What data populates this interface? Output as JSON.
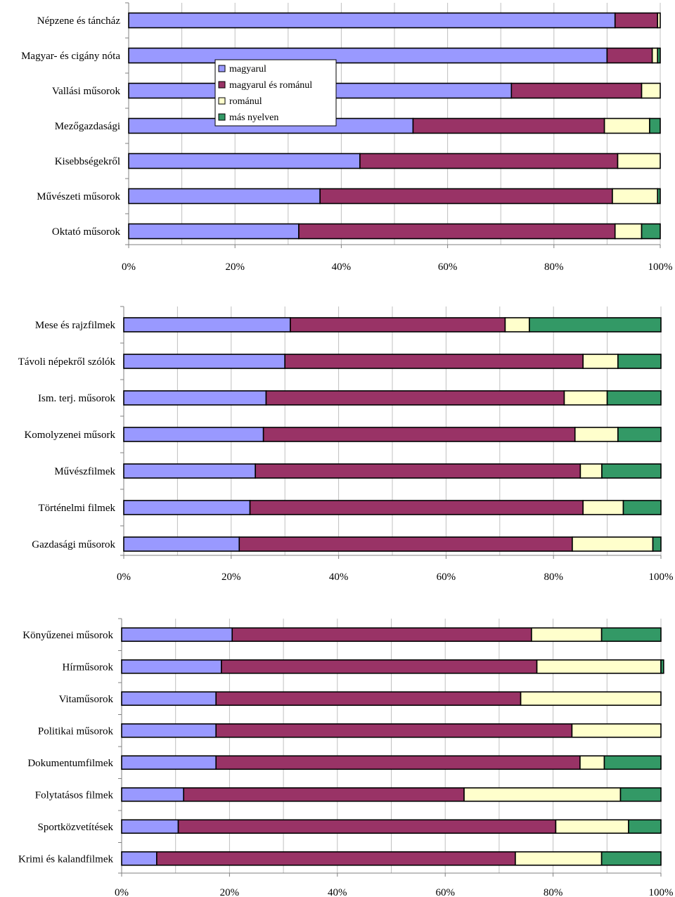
{
  "series_names": [
    "magyarul",
    "magyarul és románul",
    "románul",
    "más nyelven"
  ],
  "colors": [
    "#9999ff",
    "#993366",
    "#ffffcc",
    "#339966"
  ],
  "chart_data": [
    {
      "type": "bar",
      "orientation": "horizontal",
      "stacked": "percent",
      "categories": [
        "Népzene és táncház",
        "Magyar- és cigány nóta",
        "Vallási műsorok",
        "Mezőgazdasági",
        "Kisebbségekről",
        "Művészeti műsorok",
        "Oktató műsorok"
      ],
      "series": [
        {
          "name": "magyarul",
          "values": [
            91.5,
            90.0,
            72.0,
            53.5,
            43.5,
            36.0,
            32.0
          ]
        },
        {
          "name": "magyarul és románul",
          "values": [
            8.0,
            8.5,
            24.5,
            36.0,
            48.5,
            55.0,
            59.5
          ]
        },
        {
          "name": "románul",
          "values": [
            0.5,
            1.0,
            3.5,
            8.5,
            8.0,
            8.5,
            5.0
          ]
        },
        {
          "name": "más nyelven",
          "values": [
            0.0,
            0.5,
            0.0,
            2.0,
            0.0,
            0.5,
            3.5
          ]
        }
      ],
      "xticks": [
        "0%",
        "20%",
        "40%",
        "60%",
        "80%",
        "100%"
      ],
      "xlim": [
        0,
        100
      ],
      "legend": "top-center"
    },
    {
      "type": "bar",
      "orientation": "horizontal",
      "stacked": "percent",
      "categories": [
        "Mese és rajzfilmek",
        "Távoli népekről szólók",
        "Ism. terj. műsorok",
        "Komolyzenei műsork",
        "Művészfilmek",
        "Történelmi filmek",
        "Gazdasági műsorok"
      ],
      "series": [
        {
          "name": "magyarul",
          "values": [
            31.0,
            30.0,
            26.5,
            26.0,
            24.5,
            23.5,
            21.5
          ]
        },
        {
          "name": "magyarul és románul",
          "values": [
            40.0,
            55.5,
            55.5,
            58.0,
            60.5,
            62.0,
            62.0
          ]
        },
        {
          "name": "románul",
          "values": [
            4.5,
            6.5,
            8.0,
            8.0,
            4.0,
            7.5,
            15.0
          ]
        },
        {
          "name": "más nyelven",
          "values": [
            24.5,
            8.0,
            10.0,
            8.0,
            11.0,
            7.0,
            1.5
          ]
        }
      ],
      "xticks": [
        "0%",
        "20%",
        "40%",
        "60%",
        "80%",
        "100%"
      ],
      "xlim": [
        0,
        100
      ]
    },
    {
      "type": "bar",
      "orientation": "horizontal",
      "stacked": "percent",
      "categories": [
        "Könyűzenei műsorok",
        "Hírműsorok",
        "Vitaműsorok",
        "Politikai műsorok",
        "Dokumentumfilmek",
        "Folytatásos filmek",
        "Sportközvetítések",
        "Krimi és kalandfilmek"
      ],
      "series": [
        {
          "name": "magyarul",
          "values": [
            20.5,
            18.5,
            17.5,
            17.5,
            17.5,
            11.5,
            10.5,
            6.5
          ]
        },
        {
          "name": "magyarul és románul",
          "values": [
            55.5,
            58.5,
            56.5,
            66.0,
            67.5,
            52.0,
            70.0,
            66.5
          ]
        },
        {
          "name": "románul",
          "values": [
            13.0,
            23.0,
            26.0,
            16.5,
            4.5,
            29.0,
            13.5,
            16.0
          ]
        },
        {
          "name": "más nyelven",
          "values": [
            11.0,
            0.5,
            0.0,
            0.0,
            10.5,
            7.5,
            6.0,
            11.0
          ]
        }
      ],
      "xticks": [
        "0%",
        "20%",
        "40%",
        "60%",
        "80%",
        "100%"
      ],
      "xlim": [
        0,
        100
      ]
    }
  ]
}
